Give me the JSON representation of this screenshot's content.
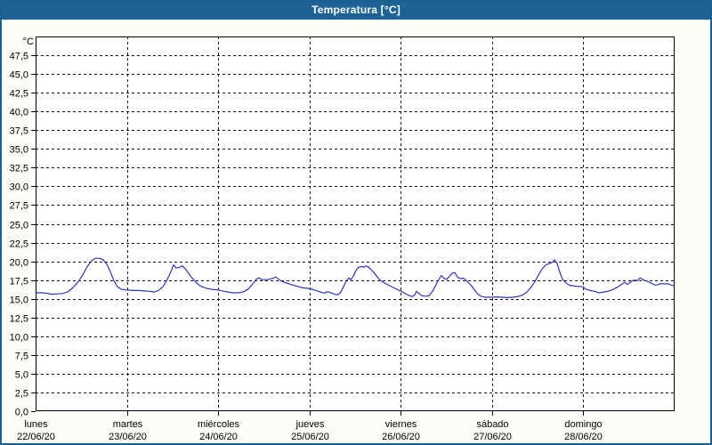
{
  "window": {
    "title": "Temperatura [°C]"
  },
  "colors": {
    "titlebar_bg": "#1e6396",
    "titlebar_text": "#ffffff",
    "window_border": "#1c5f93",
    "background": "#fbfdf7",
    "plot_background": "#ffffff",
    "axis": "#000000",
    "grid": "#111111",
    "line": "#3232c4"
  },
  "y_axis": {
    "unit_label": "°C",
    "tick_labels": [
      "47,5",
      "45,0",
      "42,5",
      "40,0",
      "37,5",
      "35,0",
      "32,5",
      "30,0",
      "27,5",
      "25,0",
      "22,5",
      "20,0",
      "17,5",
      "15,0",
      "12,5",
      "10,0",
      "7,5",
      "5,0",
      "2,5",
      "0,0"
    ]
  },
  "x_axis": {
    "days": [
      {
        "name": "lunes",
        "date": "22/06/20"
      },
      {
        "name": "martes",
        "date": "23/06/20"
      },
      {
        "name": "miércoles",
        "date": "24/06/20"
      },
      {
        "name": "jueves",
        "date": "25/06/20"
      },
      {
        "name": "viernes",
        "date": "26/06/20"
      },
      {
        "name": "sábado",
        "date": "27/06/20"
      },
      {
        "name": "domingo",
        "date": "28/06/20"
      }
    ]
  },
  "chart_data": {
    "type": "line",
    "title": "Temperatura [°C]",
    "ylabel": "°C",
    "ylim": [
      0,
      50
    ],
    "y_tick_step": 2.5,
    "xlim": [
      0,
      7
    ],
    "x_unit": "days (22/06/20 – 28/06/20)",
    "grid": "dashed",
    "legend": null,
    "series_name": "Temperatura",
    "points": [
      [
        0.0,
        15.8
      ],
      [
        0.059,
        15.8
      ],
      [
        0.117,
        15.75
      ],
      [
        0.176,
        15.6
      ],
      [
        0.234,
        15.65
      ],
      [
        0.293,
        15.7
      ],
      [
        0.351,
        15.9
      ],
      [
        0.41,
        16.5
      ],
      [
        0.468,
        17.3
      ],
      [
        0.517,
        18.2
      ],
      [
        0.566,
        19.3
      ],
      [
        0.614,
        20.1
      ],
      [
        0.653,
        20.4
      ],
      [
        0.702,
        20.4
      ],
      [
        0.741,
        20.2
      ],
      [
        0.78,
        19.6
      ],
      [
        0.819,
        18.6
      ],
      [
        0.858,
        17.4
      ],
      [
        0.897,
        16.6
      ],
      [
        0.936,
        16.3
      ],
      [
        0.975,
        16.2
      ],
      [
        1.024,
        16.15
      ],
      [
        1.072,
        16.1
      ],
      [
        1.131,
        16.1
      ],
      [
        1.189,
        16.05
      ],
      [
        1.248,
        16.0
      ],
      [
        1.297,
        15.9
      ],
      [
        1.345,
        16.1
      ],
      [
        1.394,
        16.6
      ],
      [
        1.443,
        17.6
      ],
      [
        1.482,
        18.6
      ],
      [
        1.511,
        19.55
      ],
      [
        1.54,
        19.1
      ],
      [
        1.579,
        19.2
      ],
      [
        1.609,
        19.4
      ],
      [
        1.648,
        18.9
      ],
      [
        1.687,
        18.2
      ],
      [
        1.726,
        17.6
      ],
      [
        1.774,
        17.0
      ],
      [
        1.823,
        16.6
      ],
      [
        1.872,
        16.4
      ],
      [
        1.93,
        16.25
      ],
      [
        1.989,
        16.2
      ],
      [
        2.048,
        16.05
      ],
      [
        2.106,
        15.9
      ],
      [
        2.164,
        15.8
      ],
      [
        2.223,
        15.8
      ],
      [
        2.281,
        15.95
      ],
      [
        2.33,
        16.3
      ],
      [
        2.379,
        17.0
      ],
      [
        2.418,
        17.6
      ],
      [
        2.447,
        17.8
      ],
      [
        2.476,
        17.55
      ],
      [
        2.515,
        17.55
      ],
      [
        2.564,
        17.6
      ],
      [
        2.603,
        17.75
      ],
      [
        2.632,
        17.9
      ],
      [
        2.662,
        17.6
      ],
      [
        2.701,
        17.3
      ],
      [
        2.749,
        17.1
      ],
      [
        2.798,
        16.9
      ],
      [
        2.857,
        16.7
      ],
      [
        2.915,
        16.5
      ],
      [
        2.974,
        16.4
      ],
      [
        3.022,
        16.3
      ],
      [
        3.071,
        16.1
      ],
      [
        3.12,
        15.9
      ],
      [
        3.159,
        15.75
      ],
      [
        3.198,
        15.95
      ],
      [
        3.237,
        15.8
      ],
      [
        3.276,
        15.6
      ],
      [
        3.315,
        15.55
      ],
      [
        3.344,
        15.9
      ],
      [
        3.373,
        16.6
      ],
      [
        3.403,
        17.4
      ],
      [
        3.432,
        17.8
      ],
      [
        3.451,
        17.5
      ],
      [
        3.481,
        18.0
      ],
      [
        3.51,
        18.8
      ],
      [
        3.539,
        19.2
      ],
      [
        3.568,
        19.3
      ],
      [
        3.598,
        19.2
      ],
      [
        3.617,
        19.4
      ],
      [
        3.637,
        19.3
      ],
      [
        3.666,
        19.0
      ],
      [
        3.705,
        18.5
      ],
      [
        3.744,
        17.9
      ],
      [
        3.783,
        17.4
      ],
      [
        3.822,
        17.1
      ],
      [
        3.871,
        16.8
      ],
      [
        3.919,
        16.5
      ],
      [
        3.968,
        16.2
      ],
      [
        4.007,
        16.0
      ],
      [
        4.046,
        15.7
      ],
      [
        4.085,
        15.45
      ],
      [
        4.124,
        15.3
      ],
      [
        4.153,
        15.5
      ],
      [
        4.173,
        16.0
      ],
      [
        4.202,
        15.7
      ],
      [
        4.231,
        15.4
      ],
      [
        4.27,
        15.35
      ],
      [
        4.309,
        15.4
      ],
      [
        4.348,
        16.0
      ],
      [
        4.387,
        16.9
      ],
      [
        4.417,
        17.6
      ],
      [
        4.446,
        18.1
      ],
      [
        4.475,
        17.7
      ],
      [
        4.504,
        17.6
      ],
      [
        4.534,
        18.0
      ],
      [
        4.563,
        18.4
      ],
      [
        4.592,
        18.5
      ],
      [
        4.621,
        17.9
      ],
      [
        4.651,
        17.7
      ],
      [
        4.69,
        17.75
      ],
      [
        4.729,
        17.3
      ],
      [
        4.768,
        16.8
      ],
      [
        4.807,
        16.2
      ],
      [
        4.846,
        15.6
      ],
      [
        4.885,
        15.3
      ],
      [
        4.933,
        15.2
      ],
      [
        4.992,
        15.2
      ],
      [
        5.05,
        15.25
      ],
      [
        5.109,
        15.2
      ],
      [
        5.167,
        15.15
      ],
      [
        5.226,
        15.2
      ],
      [
        5.284,
        15.3
      ],
      [
        5.333,
        15.5
      ],
      [
        5.382,
        15.9
      ],
      [
        5.431,
        16.6
      ],
      [
        5.47,
        17.3
      ],
      [
        5.509,
        18.2
      ],
      [
        5.548,
        19.0
      ],
      [
        5.587,
        19.5
      ],
      [
        5.626,
        19.7
      ],
      [
        5.655,
        19.8
      ],
      [
        5.684,
        20.2
      ],
      [
        5.713,
        19.7
      ],
      [
        5.743,
        18.5
      ],
      [
        5.772,
        17.6
      ],
      [
        5.811,
        17.1
      ],
      [
        5.85,
        16.8
      ],
      [
        5.899,
        16.7
      ],
      [
        5.947,
        16.65
      ],
      [
        5.996,
        16.6
      ],
      [
        6.025,
        16.3
      ],
      [
        6.074,
        16.1
      ],
      [
        6.123,
        16.0
      ],
      [
        6.172,
        15.8
      ],
      [
        6.22,
        15.9
      ],
      [
        6.269,
        16.0
      ],
      [
        6.318,
        16.2
      ],
      [
        6.367,
        16.5
      ],
      [
        6.416,
        16.9
      ],
      [
        6.455,
        17.2
      ],
      [
        6.484,
        16.9
      ],
      [
        6.523,
        17.3
      ],
      [
        6.562,
        17.5
      ],
      [
        6.591,
        17.4
      ],
      [
        6.62,
        17.8
      ],
      [
        6.659,
        17.5
      ],
      [
        6.708,
        17.3
      ],
      [
        6.757,
        17.0
      ],
      [
        6.796,
        16.8
      ],
      [
        6.835,
        17.0
      ],
      [
        6.883,
        17.0
      ],
      [
        6.932,
        17.0
      ],
      [
        6.971,
        16.8
      ],
      [
        6.991,
        16.7
      ]
    ]
  }
}
